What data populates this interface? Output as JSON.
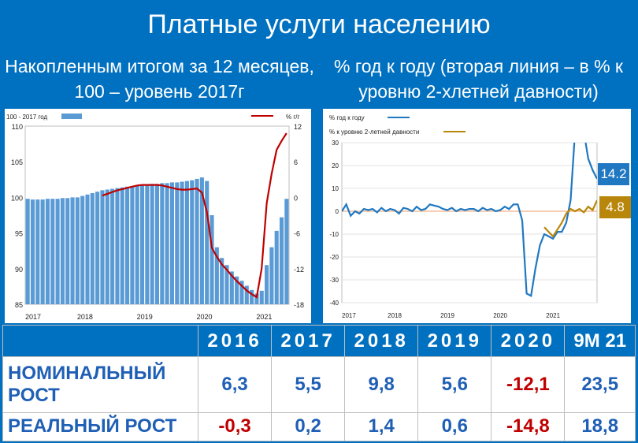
{
  "title": "Платные услуги населению",
  "subtitle_left": "Накопленным итогом за 12 месяцев, 100 – уровень 2017г",
  "subtitle_right": "% год к году (вторая линия – в % к уровню 2-хлетней давности)",
  "tags": {
    "a": "14.2",
    "b": "4.8"
  },
  "colors": {
    "accent_blue": "#0070c0",
    "bar_blue": "#5b9bd5",
    "line_red": "#c00000",
    "line_blue": "#1f78c1",
    "line_gold": "#b8860b",
    "negative": "#c00000"
  },
  "table": {
    "years": [
      "2016",
      "2017",
      "2018",
      "2019",
      "2020",
      "9М 21"
    ],
    "rows": [
      {
        "label": "НОМИНАЛЬНЫЙ РОСТ",
        "values": [
          "6,3",
          "5,5",
          "9,8",
          "5,6",
          "-12,1",
          "23,5"
        ]
      },
      {
        "label": "РЕАЛЬНЫЙ РОСТ",
        "values": [
          "-0,3",
          "0,2",
          "1,4",
          "0,6",
          "-14,8",
          "18,8"
        ]
      }
    ]
  },
  "chart_data": [
    {
      "type": "bar",
      "legend": [
        "100 - 2017 год",
        "% г/г"
      ],
      "x_ticks": [
        "2017",
        "2018",
        "2019",
        "2020",
        "2021"
      ],
      "y_left_ticks": [
        "85",
        "90",
        "95",
        "100",
        "105",
        "110"
      ],
      "y_right_ticks": [
        "-18",
        "-12",
        "-6",
        "0",
        "6",
        "12"
      ],
      "ylim": [
        85,
        110
      ],
      "y2lim": [
        -18,
        12
      ],
      "series": [
        {
          "name": "100 - 2017 год",
          "type": "bar",
          "values": [
            99.8,
            99.7,
            99.7,
            99.7,
            99.8,
            99.8,
            99.8,
            99.9,
            99.9,
            100,
            100,
            100.2,
            100.4,
            100.6,
            100.8,
            101,
            101.1,
            101.2,
            101.3,
            101.4,
            101.5,
            101.6,
            101.7,
            101.8,
            101.8,
            101.9,
            101.9,
            102,
            102,
            102.1,
            102.1,
            102.2,
            102.3,
            102.4,
            102.6,
            102.8,
            102.3,
            97.5,
            93,
            91.5,
            90.5,
            89.6,
            88.9,
            88.3,
            87.6,
            87,
            86.5,
            86.9,
            90.5,
            93,
            95.3,
            97.2,
            99.8
          ]
        },
        {
          "name": "% г/г",
          "type": "line",
          "x": [
            15,
            16,
            17,
            18,
            19,
            20,
            21,
            22,
            23,
            24,
            25,
            26,
            27,
            28,
            29,
            30,
            31,
            32,
            33,
            34,
            35,
            36,
            37,
            38,
            39,
            40,
            41,
            42,
            43,
            44,
            45,
            46,
            47,
            48,
            49,
            50,
            51,
            52
          ],
          "values": [
            0.3,
            0.6,
            0.9,
            1.2,
            1.4,
            1.6,
            1.8,
            2,
            2.1,
            2.1,
            2.1,
            2.1,
            2,
            1.8,
            1.6,
            1.4,
            1.3,
            1.3,
            1.4,
            1.5,
            0.8,
            -2.5,
            -8.5,
            -10,
            -11.3,
            -12.2,
            -13.2,
            -14.1,
            -14.9,
            -15.7,
            -16.3,
            -16.8,
            -12,
            -1,
            4,
            8,
            9.5,
            10.8
          ]
        }
      ]
    },
    {
      "type": "line",
      "legend": [
        "% год к году",
        "% к уровню 2-летней давности"
      ],
      "x_ticks": [
        "2017",
        "2018",
        "2019",
        "2020",
        "2021"
      ],
      "y_ticks": [
        "-40",
        "-30",
        "-20",
        "-10",
        "0",
        "10",
        "20",
        "30"
      ],
      "ylim": [
        -40,
        30
      ],
      "series": [
        {
          "name": "% год к году",
          "x": [
            0,
            1,
            2,
            3,
            4,
            5,
            6,
            7,
            8,
            9,
            10,
            11,
            12,
            13,
            14,
            15,
            16,
            17,
            18,
            19,
            20,
            21,
            22,
            23,
            24,
            25,
            26,
            27,
            28,
            29,
            30,
            31,
            32,
            33,
            34,
            35,
            36,
            37,
            38,
            39,
            40,
            41,
            42,
            43,
            44,
            45,
            46,
            47,
            48,
            49,
            50,
            51,
            52,
            53,
            54,
            55,
            56,
            57,
            58
          ],
          "values": [
            0,
            3,
            -2,
            0,
            -1,
            1,
            0.5,
            1,
            -0.5,
            1.5,
            0,
            1,
            0.5,
            -1,
            1.5,
            1,
            0,
            2,
            0.5,
            1,
            3,
            2.5,
            2,
            1,
            0.5,
            1.5,
            0,
            1,
            0.5,
            1,
            1,
            0,
            1.5,
            0.5,
            1,
            0,
            0.5,
            2,
            1,
            3,
            3,
            -4,
            -36,
            -37,
            -25,
            -15,
            -10,
            -11,
            -12,
            -9,
            -9,
            -5,
            5,
            35,
            45,
            35,
            23,
            18,
            14.2
          ]
        },
        {
          "name": "% к уровню 2-летней давности",
          "x": [
            46,
            47,
            48,
            49,
            50,
            51,
            52,
            53,
            54,
            55,
            56,
            57,
            58
          ],
          "values": [
            -7,
            -9,
            -11,
            -8,
            -5,
            -1,
            1,
            0,
            1,
            -0.5,
            2,
            0.5,
            4.8
          ]
        }
      ]
    }
  ]
}
